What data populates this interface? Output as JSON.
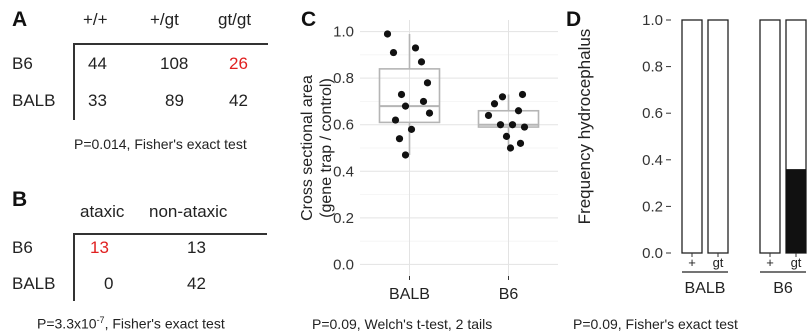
{
  "panel_a": {
    "label": "A",
    "columns": [
      "+/+",
      "+/gt",
      "gt/gt"
    ],
    "rows": [
      {
        "name": "B6",
        "values": [
          "44",
          "108",
          "26"
        ],
        "highlight": [
          false,
          false,
          true
        ]
      },
      {
        "name": "BALB",
        "values": [
          "33",
          "89",
          "42"
        ],
        "highlight": [
          false,
          false,
          false
        ]
      }
    ],
    "caption": "P=0.014, Fisher's exact test"
  },
  "panel_b": {
    "label": "B",
    "columns": [
      "ataxic",
      "non-ataxic"
    ],
    "rows": [
      {
        "name": "B6",
        "values": [
          "13",
          "13"
        ],
        "highlight": [
          true,
          false
        ]
      },
      {
        "name": "BALB",
        "values": [
          "0",
          "42"
        ],
        "highlight": [
          false,
          false
        ]
      }
    ],
    "caption_pre": "P=3.3x10",
    "caption_exp": "-7",
    "caption_post": ", Fisher's exact test"
  },
  "panel_c": {
    "label": "C",
    "caption": "P=0.09, Welch's t-test, 2 tails"
  },
  "panel_d": {
    "label": "D",
    "caption": "P=0.09, Fisher's exact test"
  },
  "colors": {
    "highlight": "#e02020",
    "grid": "#e3e3e3",
    "box": "#b5b5b5",
    "point": "#111111",
    "bar_fill": "#111111"
  },
  "chart_data": [
    {
      "id": "C",
      "type": "box",
      "ylabel": "Cross sectional area\n(gene trap / control)",
      "ylim": [
        -0.05,
        1.05
      ],
      "yticks": [
        0.0,
        0.2,
        0.4,
        0.6,
        0.8,
        1.0
      ],
      "ytick_labels": [
        "0.0",
        "0.2",
        "0.4",
        "0.6",
        "0.8",
        "1.0"
      ],
      "grid": true,
      "categories": [
        "BALB",
        "B6"
      ],
      "series": [
        {
          "category": "BALB",
          "box": {
            "min": 0.47,
            "q1": 0.61,
            "median": 0.68,
            "q3": 0.84,
            "max": 0.99
          },
          "points": [
            0.99,
            0.93,
            0.91,
            0.87,
            0.78,
            0.73,
            0.7,
            0.68,
            0.65,
            0.62,
            0.58,
            0.54,
            0.47
          ]
        },
        {
          "category": "B6",
          "box": {
            "min": 0.5,
            "q1": 0.59,
            "median": 0.6,
            "q3": 0.66,
            "max": 0.73
          },
          "points": [
            0.73,
            0.72,
            0.69,
            0.66,
            0.64,
            0.6,
            0.6,
            0.59,
            0.55,
            0.52,
            0.5
          ]
        }
      ]
    },
    {
      "id": "D",
      "type": "bar",
      "stacked": true,
      "ylabel": "Frequency hydrocephalus",
      "ylim": [
        0,
        1.0
      ],
      "yticks": [
        0.0,
        0.2,
        0.4,
        0.6,
        0.8,
        1.0
      ],
      "ytick_labels": [
        "0.0",
        "0.2",
        "0.4",
        "0.6",
        "0.8",
        "1.0"
      ],
      "groups": [
        {
          "name": "BALB",
          "categories": [
            "+",
            "gt"
          ],
          "values": [
            0,
            0
          ]
        },
        {
          "name": "B6",
          "categories": [
            "+",
            "gt"
          ],
          "values": [
            0,
            0.36
          ]
        }
      ]
    }
  ]
}
